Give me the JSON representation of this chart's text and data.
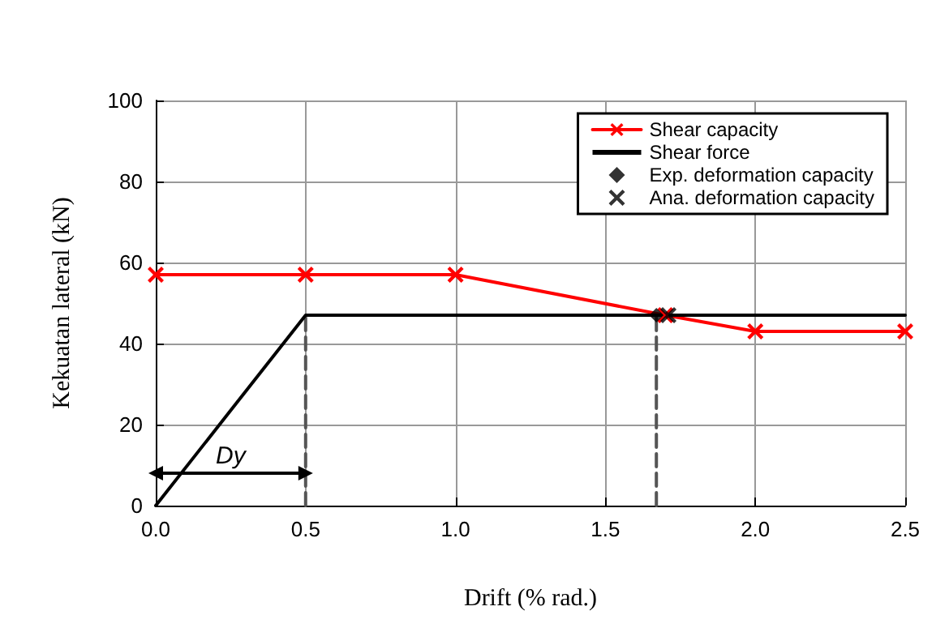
{
  "chart_data": {
    "type": "line",
    "xlabel": "Drift (% rad.)",
    "ylabel": "Kekuatan lateral (kN)",
    "xlim": [
      0,
      2.5
    ],
    "xticks": [
      {
        "value": 0,
        "label": "0.0"
      },
      0.5,
      {
        "value": 1,
        "label": "1.0"
      },
      1.5,
      {
        "value": 2,
        "label": "2.0"
      },
      2.5
    ],
    "ylim": [
      0,
      100
    ],
    "yticks": [
      0,
      20,
      40,
      60,
      80,
      100
    ],
    "grid": true,
    "legend": "top right",
    "series": [
      {
        "name": "Shear capacity",
        "color": "#ff0000",
        "marker": "cross",
        "x": [
          0,
          0.5,
          1.0,
          1.7,
          2.0,
          2.5
        ],
        "values": [
          57,
          57,
          57,
          47,
          43,
          43
        ]
      },
      {
        "name": "Shear force",
        "color": "#000000",
        "marker": "none",
        "x": [
          0,
          0.5,
          2.5
        ],
        "values": [
          0,
          47,
          47
        ]
      },
      {
        "name": "Exp. deformation capacity",
        "type": "scatter",
        "color": "#000000",
        "marker": "diamond",
        "x": [
          1.67
        ],
        "values": [
          47
        ]
      },
      {
        "name": "Ana. deformation capacity",
        "type": "scatter",
        "color": "#000000",
        "marker": "cross",
        "x": [
          1.71
        ],
        "values": [
          47
        ]
      },
      {
        "color": "#555555",
        "marker": "none",
        "line_style": "dashed",
        "x": [
          0.5,
          0.5
        ],
        "values": [
          0,
          47
        ]
      },
      {
        "color": "#555555",
        "marker": "none",
        "line_style": "dashed",
        "x": [
          1.67,
          1.67
        ],
        "values": [
          0,
          47
        ]
      },
      {
        "color": "#000000",
        "marker": "triangle",
        "x": [
          0,
          0.5
        ],
        "values": [
          8,
          8
        ]
      }
    ],
    "annotations": [
      "Dy"
    ]
  }
}
